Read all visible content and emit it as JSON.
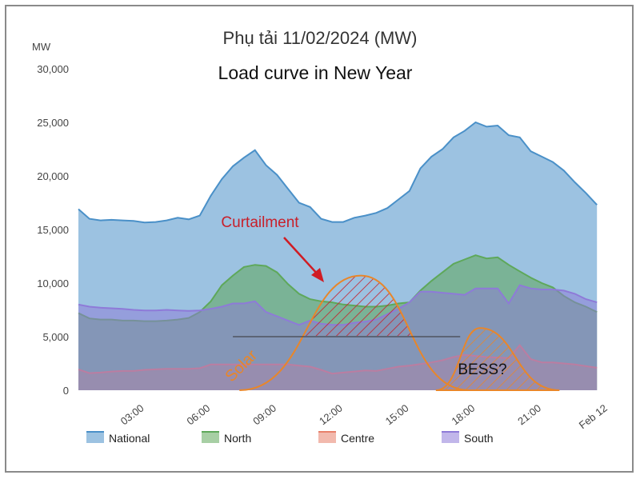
{
  "chart_data": {
    "type": "area",
    "title": "Phụ tải 11/02/2024 (MW)",
    "subtitle": "Load curve in New Year",
    "ylabel": "MW",
    "ylim": [
      0,
      30000
    ],
    "yticks": [
      "0",
      "5,000",
      "10,000",
      "15,000",
      "20,000",
      "25,000",
      "30,000"
    ],
    "xticks": [
      {
        "label": "03:00",
        "hour": 3
      },
      {
        "label": "06:00",
        "hour": 6
      },
      {
        "label": "09:00",
        "hour": 9
      },
      {
        "label": "12:00",
        "hour": 12
      },
      {
        "label": "15:00",
        "hour": 15
      },
      {
        "label": "18:00",
        "hour": 18
      },
      {
        "label": "21:00",
        "hour": 21
      },
      {
        "label": "Feb 12",
        "hour": 24
      }
    ],
    "x": [
      0,
      0.5,
      1,
      1.5,
      2,
      2.5,
      3,
      3.5,
      4,
      4.5,
      5,
      5.5,
      6,
      6.5,
      7,
      7.5,
      8,
      8.5,
      9,
      9.5,
      10,
      10.5,
      11,
      11.5,
      12,
      12.5,
      13,
      13.5,
      14,
      14.5,
      15,
      15.5,
      16,
      16.5,
      17,
      17.5,
      18,
      18.5,
      19,
      19.5,
      20,
      20.5,
      21,
      21.5,
      22,
      22.5,
      23,
      23.5
    ],
    "series": [
      {
        "name": "National",
        "color": "#4a90c8",
        "values": [
          16900,
          16000,
          15850,
          15900,
          15850,
          15800,
          15650,
          15700,
          15850,
          16100,
          15950,
          16300,
          18150,
          19700,
          20900,
          21700,
          22400,
          21000,
          20100,
          18800,
          17500,
          17100,
          16000,
          15700,
          15700,
          16100,
          16300,
          16550,
          17000,
          17800,
          18600,
          20700,
          21800,
          22500,
          23600,
          24200,
          25000,
          24600,
          24700,
          23800,
          23600,
          22300,
          21800,
          21300,
          20500,
          19400,
          18400,
          17300
        ]
      },
      {
        "name": "North",
        "color": "#5ea85a",
        "values": [
          7200,
          6700,
          6600,
          6600,
          6500,
          6500,
          6450,
          6450,
          6500,
          6600,
          6750,
          7300,
          8300,
          9800,
          10700,
          11500,
          11700,
          11600,
          11000,
          9900,
          9000,
          8500,
          8300,
          8200,
          8000,
          7900,
          7800,
          7800,
          7900,
          8100,
          8200,
          9300,
          10200,
          11000,
          11800,
          12200,
          12600,
          12300,
          12400,
          11700,
          11100,
          10500,
          10000,
          9600,
          8800,
          8200,
          7800,
          7300
        ]
      },
      {
        "name": "Centre",
        "color": "#e8806a",
        "values": [
          1950,
          1600,
          1650,
          1750,
          1800,
          1800,
          1900,
          1950,
          2000,
          2000,
          2000,
          2050,
          2400,
          2400,
          2400,
          2400,
          2400,
          2400,
          2400,
          2400,
          2300,
          2200,
          1900,
          1550,
          1650,
          1750,
          1850,
          1800,
          2000,
          2200,
          2300,
          2450,
          2600,
          2800,
          3100,
          3300,
          3200,
          3100,
          3050,
          3000,
          4200,
          2900,
          2600,
          2600,
          2500,
          2400,
          2250,
          2100
        ]
      },
      {
        "name": "South",
        "color": "#8e7ad8",
        "values": [
          8000,
          7800,
          7700,
          7650,
          7600,
          7500,
          7450,
          7450,
          7500,
          7450,
          7400,
          7450,
          7600,
          7800,
          8100,
          8100,
          8300,
          7300,
          6900,
          6500,
          6100,
          6500,
          6200,
          6100,
          6100,
          6300,
          6400,
          6600,
          7100,
          7600,
          8200,
          9200,
          9200,
          9100,
          9000,
          8900,
          9500,
          9500,
          9500,
          8100,
          9800,
          9500,
          9400,
          9400,
          9300,
          9000,
          8500,
          8200
        ]
      }
    ],
    "annotations": {
      "curtailment": "Curtailment",
      "solar": "Solar",
      "bess": "BESS?"
    },
    "overlay_shapes": {
      "solar_curve": {
        "start_hour": 7.3,
        "peak_hour": 12.8,
        "end_hour": 17.7,
        "peak_mw": 10700
      },
      "bess_curve": {
        "start_hour": 16.2,
        "peak_hour": 18.2,
        "end_hour": 21.8,
        "peak_mw": 5800
      },
      "threshold_line": {
        "from_hour": 7,
        "to_hour": 17.3,
        "mw": 5000
      },
      "bess_level_mw": 0
    },
    "grid": false,
    "legend_position": "bottom"
  }
}
